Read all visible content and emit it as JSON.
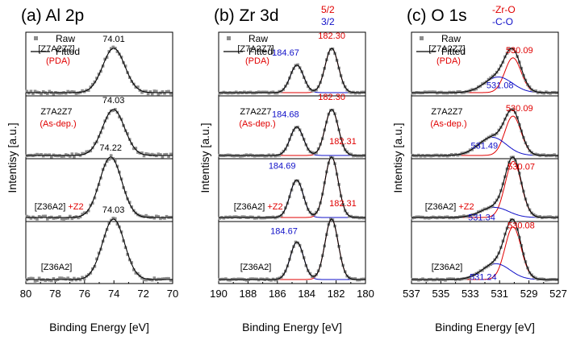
{
  "figure": {
    "ylabel": "Intentisy [a.u.]",
    "xlabel": "Binding Energy [eV]",
    "legend": {
      "raw": "Raw",
      "fitted": "Fitted"
    },
    "colors": {
      "black": "#000000",
      "red": "#e00000",
      "blue": "#1010c8",
      "raw": "#8c8c8c"
    }
  },
  "chart_data": [
    {
      "type": "line",
      "title": "(a) Al 2p",
      "xlabel": "Binding Energy [eV]",
      "ylabel": "Intentisy [a.u.]",
      "xlim": [
        80,
        70
      ],
      "xticks": [
        "80",
        "78",
        "76",
        "74",
        "72",
        "70"
      ],
      "legend": [
        "Raw",
        "Fitted"
      ],
      "series": [
        {
          "name": "[Z7A2Z7] (PDA)",
          "label": "[Z7A2Z7]",
          "sublabel": "(PDA)",
          "peaks": [
            {
              "center": 74.01,
              "label": "74.01"
            }
          ]
        },
        {
          "name": "Z7A2Z7 (As-dep.)",
          "label": "Z7A2Z7",
          "sublabel": "(As-dep.)",
          "peaks": [
            {
              "center": 74.03,
              "label": "74.03"
            }
          ]
        },
        {
          "name": "[Z36A2]+Z2",
          "label": "[Z36A2]",
          "suffix": "+Z2",
          "peaks": [
            {
              "center": 74.22,
              "label": "74.22"
            }
          ]
        },
        {
          "name": "[Z36A2]",
          "label": "[Z36A2]",
          "peaks": [
            {
              "center": 74.03,
              "label": "74.03"
            }
          ]
        }
      ]
    },
    {
      "type": "line",
      "title": "(b) Zr 3d",
      "title_annot": {
        "top": "5/2",
        "bottom": "3/2"
      },
      "xlabel": "Binding Energy [eV]",
      "ylabel": "Intentisy [a.u.]",
      "xlim": [
        190,
        180
      ],
      "xticks": [
        "190",
        "188",
        "186",
        "184",
        "182",
        "180"
      ],
      "legend": [
        "Raw",
        "Fitted"
      ],
      "series": [
        {
          "name": "[Z7A2Z7] (PDA)",
          "label": "[Z7A2Z7]",
          "sublabel": "(PDA)",
          "peaks": [
            {
              "component": "3d3/2",
              "center": 184.67,
              "label": "184.67"
            },
            {
              "component": "3d5/2",
              "center": 182.3,
              "label": "182.30"
            }
          ]
        },
        {
          "name": "Z7A2Z7 (As-dep.)",
          "label": "Z7A2Z7",
          "sublabel": "(As-dep.)",
          "peaks": [
            {
              "component": "3d3/2",
              "center": 184.68,
              "label": "184.68"
            },
            {
              "component": "3d5/2",
              "center": 182.3,
              "label": "182.30"
            }
          ]
        },
        {
          "name": "[Z36A2]+Z2",
          "label": "[Z36A2]",
          "suffix": "+Z2",
          "peaks": [
            {
              "component": "3d3/2",
              "center": 184.69,
              "label": "184.69"
            },
            {
              "component": "3d5/2",
              "center": 182.31,
              "label": "182.31"
            }
          ]
        },
        {
          "name": "[Z36A2]",
          "label": "[Z36A2]",
          "peaks": [
            {
              "component": "3d3/2",
              "center": 184.67,
              "label": "184.67"
            },
            {
              "component": "3d5/2",
              "center": 182.31,
              "label": "182.31"
            }
          ]
        }
      ]
    },
    {
      "type": "line",
      "title": "(c) O 1s",
      "title_annot": {
        "top": "-Zr-O",
        "bottom": "-C-O"
      },
      "xlabel": "Binding Energy [eV]",
      "ylabel": "Intentisy [a.u.]",
      "xlim": [
        537,
        527
      ],
      "xticks": [
        "537",
        "535",
        "533",
        "531",
        "529",
        "527"
      ],
      "legend": [
        "Raw",
        "Fitted"
      ],
      "series": [
        {
          "name": "[Z7A2Z7] (PDA)",
          "label": "[Z7A2Z7]",
          "sublabel": "(PDA)",
          "peaks": [
            {
              "component": "Zr-O",
              "center": 530.09,
              "label": "530.09"
            },
            {
              "component": "C-O",
              "center": 531.08,
              "label": "531.08"
            }
          ]
        },
        {
          "name": "Z7A2Z7 (As-dep.)",
          "label": "Z7A2Z7",
          "sublabel": "(As-dep.)",
          "peaks": [
            {
              "component": "Zr-O",
              "center": 530.09,
              "label": "530.09"
            },
            {
              "component": "C-O",
              "center": 531.49,
              "label": "531.49"
            }
          ]
        },
        {
          "name": "[Z36A2]+Z2",
          "label": "[Z36A2]",
          "suffix": "+Z2",
          "peaks": [
            {
              "component": "Zr-O",
              "center": 530.07,
              "label": "530.07"
            },
            {
              "component": "C-O",
              "center": 531.34,
              "label": "531.34"
            }
          ]
        },
        {
          "name": "[Z36A2]",
          "label": "[Z36A2]",
          "peaks": [
            {
              "component": "Zr-O",
              "center": 530.08,
              "label": "530.08"
            },
            {
              "component": "C-O",
              "center": 531.24,
              "label": "531.24"
            }
          ]
        }
      ]
    }
  ]
}
